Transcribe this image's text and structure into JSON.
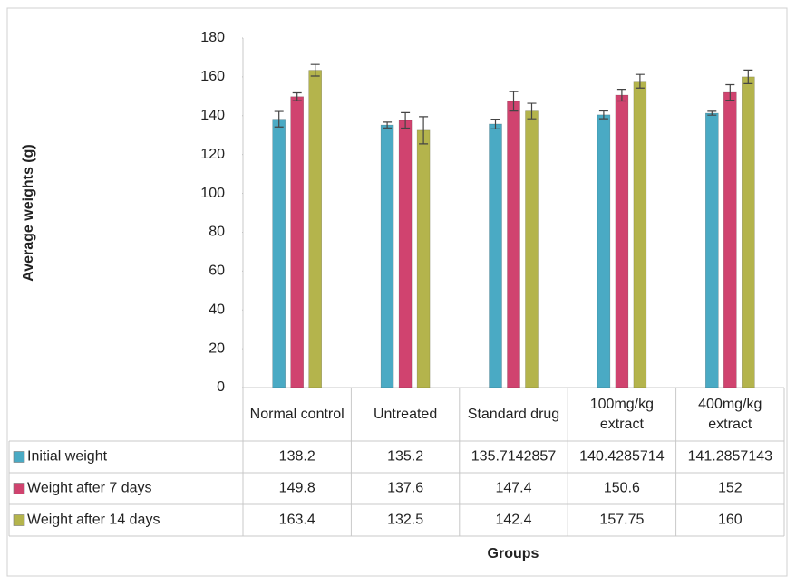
{
  "chart_data": {
    "type": "bar",
    "y_label": "Average weights (g)",
    "x_label": "Groups",
    "categories": [
      "Normal control",
      "Untreated",
      "Standard drug",
      "100mg/kg extract",
      "400mg/kg extract"
    ],
    "series": [
      {
        "name": "Initial weight",
        "color": "#4aaac4",
        "values": [
          138.2,
          135.2,
          135.7142857,
          140.4285714,
          141.2857143
        ],
        "errors": [
          4,
          1.5,
          2.5,
          2,
          1
        ]
      },
      {
        "name": "Weight after 7 days",
        "color": "#d0436f",
        "values": [
          149.8,
          137.6,
          147.4,
          150.6,
          152
        ],
        "errors": [
          2,
          4,
          5,
          3,
          4
        ]
      },
      {
        "name": "Weight after 14 days",
        "color": "#b4b44c",
        "values": [
          163.4,
          132.5,
          142.4,
          157.75,
          160
        ],
        "errors": [
          3,
          7,
          4,
          3.5,
          3.5
        ]
      }
    ],
    "ylim": [
      0,
      180
    ],
    "yticks": [
      0,
      20,
      40,
      60,
      80,
      100,
      120,
      140,
      160,
      180
    ]
  }
}
